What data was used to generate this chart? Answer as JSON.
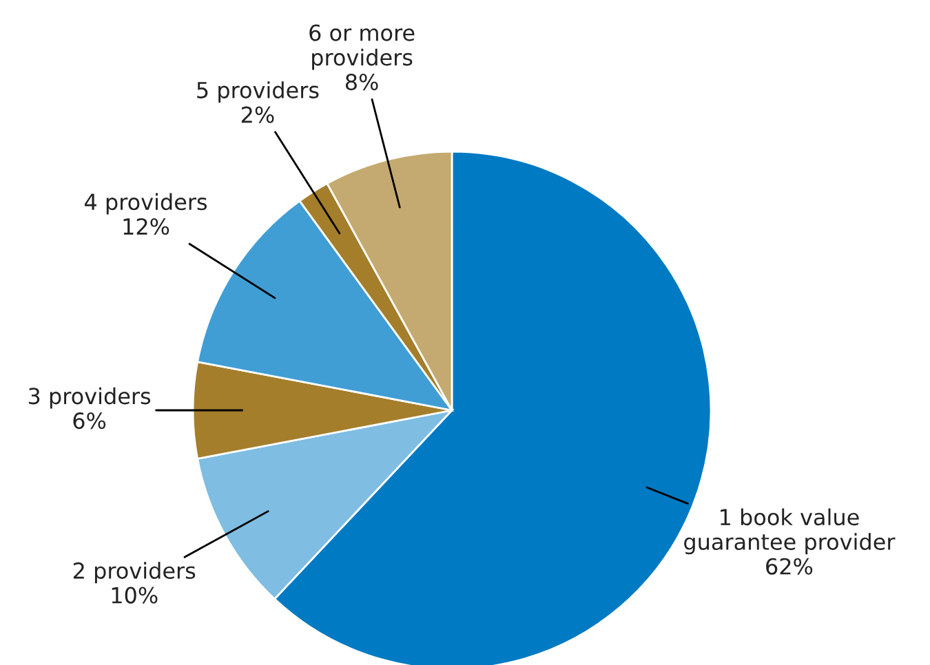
{
  "chart_data": {
    "type": "pie",
    "categories": [
      "1 book value\nguarantee provider",
      "2 providers",
      "3 providers",
      "4 providers",
      "5 providers",
      "6 or more\nproviders"
    ],
    "values": [
      62,
      10,
      6,
      12,
      2,
      8
    ],
    "colors": [
      "#007ac3",
      "#7fbde2",
      "#a57e2b",
      "#409ed5",
      "#a57e2b",
      "#c4aa70"
    ],
    "value_labels": [
      "62%",
      "10%",
      "6%",
      "12%",
      "2%",
      "8%"
    ],
    "legend": false
  }
}
